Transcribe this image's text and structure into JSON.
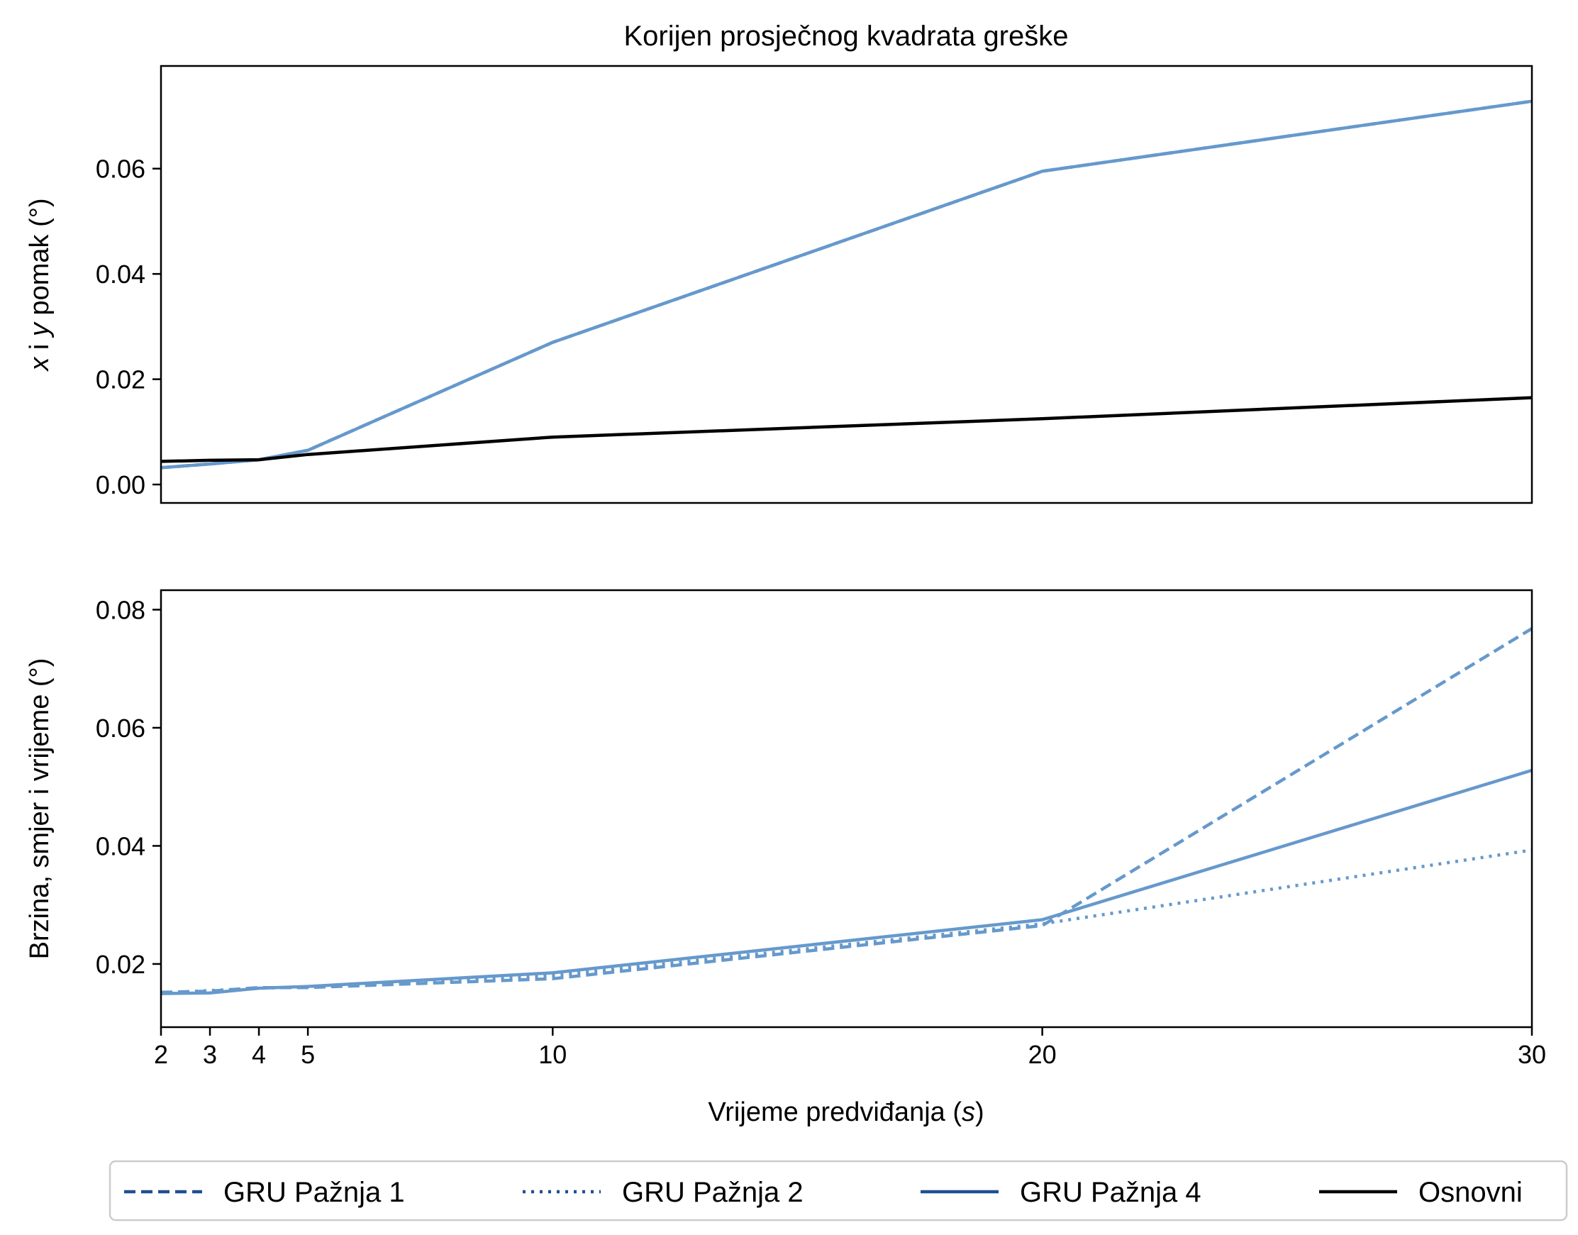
{
  "chart_data": [
    {
      "type": "line",
      "title": "Korijen prosječnog kvadrata greške",
      "xlabel": "",
      "ylabel_prefix": "x",
      "ylabel_middle": " i ",
      "ylabel_var": "y",
      "ylabel_suffix": " pomak (°)",
      "xlim": [
        2,
        30
      ],
      "ylim": [
        -0.0035,
        0.0795
      ],
      "yticks": [
        "0.00",
        "0.02",
        "0.04",
        "0.06"
      ],
      "ytick_values": [
        0.0,
        0.02,
        0.04,
        0.06
      ],
      "x": [
        2,
        3,
        4,
        5,
        10,
        20,
        30
      ],
      "series": [
        {
          "name": "GRU Pažnja 1",
          "color": "#6699cc",
          "dash": "dashed",
          "values": [
            0.0032,
            0.0039,
            0.0047,
            0.0065,
            0.027,
            0.0595,
            0.0728
          ]
        },
        {
          "name": "GRU Pažnja 2",
          "color": "#6699cc",
          "dash": "dotted",
          "values": [
            0.0032,
            0.0039,
            0.0047,
            0.0065,
            0.027,
            0.0595,
            0.0728
          ]
        },
        {
          "name": "GRU Pažnja 4",
          "color": "#6699cc",
          "dash": "solid",
          "values": [
            0.0032,
            0.0039,
            0.0047,
            0.0065,
            0.027,
            0.0595,
            0.0728
          ]
        },
        {
          "name": "Osnovni",
          "color": "#000000",
          "dash": "solid",
          "values": [
            0.0044,
            0.0046,
            0.0047,
            0.0057,
            0.009,
            0.0125,
            0.0165
          ]
        }
      ]
    },
    {
      "type": "line",
      "title": "",
      "xlabel_prefix": "Vrijeme predviđanja (",
      "xlabel_var": "s",
      "xlabel_suffix": ")",
      "ylabel": "Brzina, smjer i vrijeme (°)",
      "xlim": [
        2,
        30
      ],
      "ylim": [
        0.0093,
        0.0833
      ],
      "xticks": [
        "2",
        "3",
        "4",
        "5",
        "10",
        "20",
        "30"
      ],
      "xtick_values": [
        2,
        3,
        4,
        5,
        10,
        20,
        30
      ],
      "yticks": [
        "0.02",
        "0.04",
        "0.06",
        "0.08"
      ],
      "ytick_values": [
        0.02,
        0.04,
        0.06,
        0.08
      ],
      "x": [
        2,
        3,
        4,
        5,
        10,
        20,
        30
      ],
      "series": [
        {
          "name": "GRU Pažnja 1",
          "color": "#6699cc",
          "dash": "dashed",
          "values": [
            0.0152,
            0.0154,
            0.016,
            0.016,
            0.0175,
            0.0265,
            0.0768
          ]
        },
        {
          "name": "GRU Pažnja 2",
          "color": "#6699cc",
          "dash": "dotted",
          "values": [
            0.0151,
            0.0155,
            0.0159,
            0.0161,
            0.018,
            0.0268,
            0.0393
          ]
        },
        {
          "name": "GRU Pažnja 4",
          "color": "#6699cc",
          "dash": "solid",
          "values": [
            0.015,
            0.0151,
            0.0159,
            0.0162,
            0.0185,
            0.0275,
            0.0528
          ]
        }
      ]
    }
  ],
  "legend": {
    "placement": "bottom",
    "items": [
      {
        "label": "GRU Pažnja 1",
        "color": "#1f4f91",
        "dash": "dashed"
      },
      {
        "label": "GRU Pažnja 2",
        "color": "#1f4f91",
        "dash": "dotted"
      },
      {
        "label": "GRU Pažnja 4",
        "color": "#1f4f91",
        "dash": "solid"
      },
      {
        "label": "Osnovni",
        "color": "#000000",
        "dash": "solid"
      }
    ]
  }
}
